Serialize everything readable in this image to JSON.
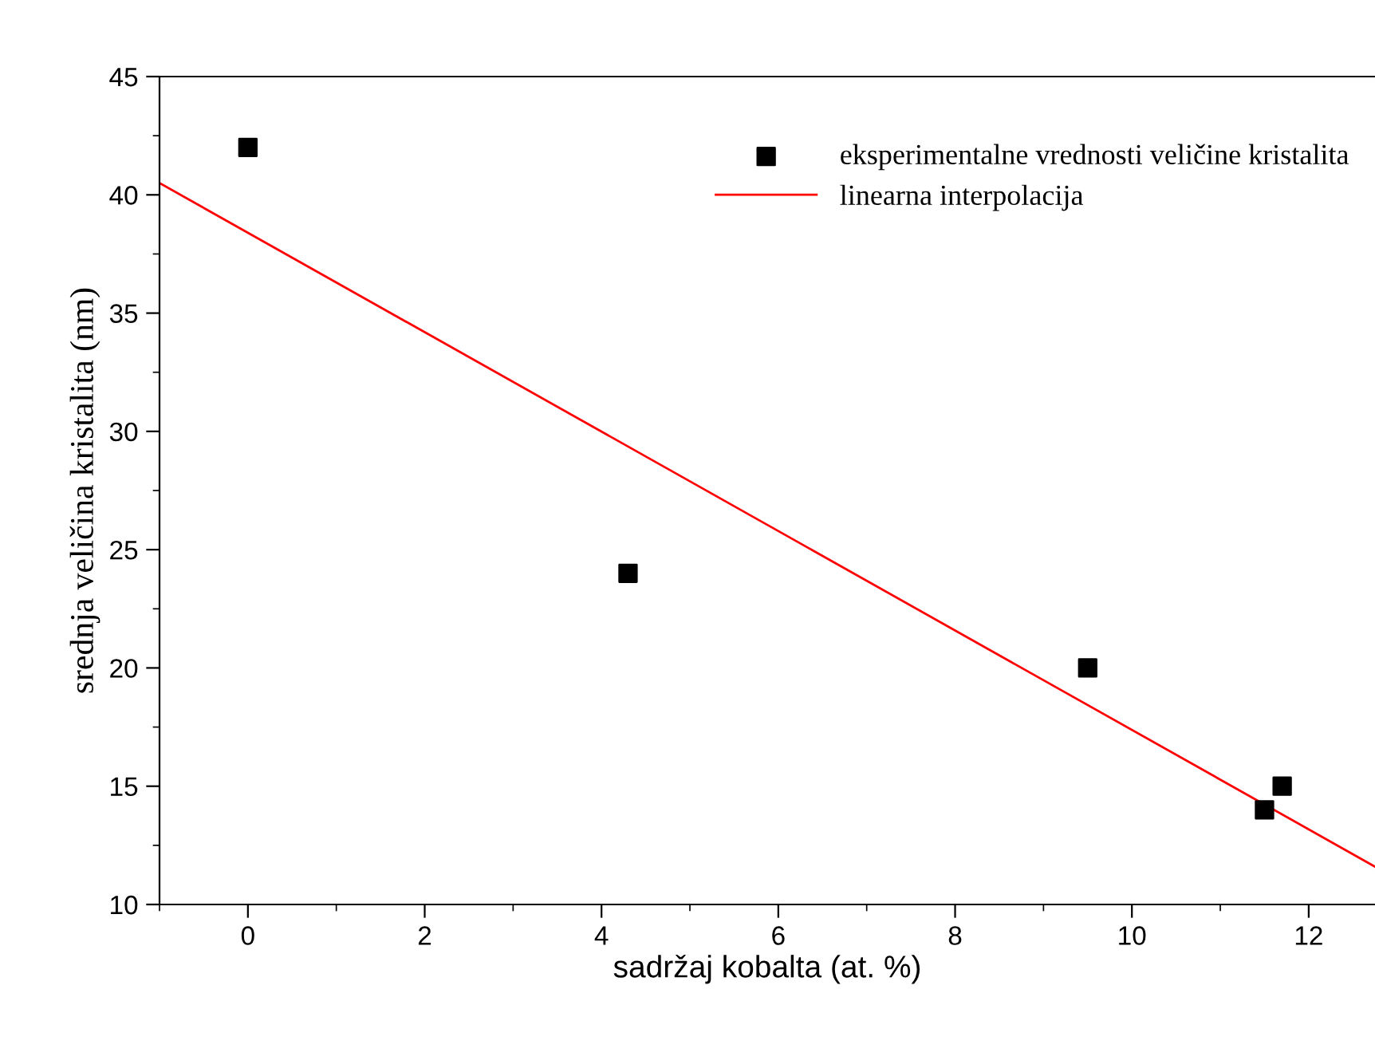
{
  "chart_data": {
    "type": "scatter",
    "xlabel": "sadržaj kobalta (at. %)",
    "ylabel": "srednja veličina kristalita (nm)",
    "xlim": [
      -1,
      12.75
    ],
    "ylim": [
      10,
      45
    ],
    "xticks": [
      0,
      2,
      4,
      6,
      8,
      10,
      12
    ],
    "yticks": [
      10,
      15,
      20,
      25,
      30,
      35,
      40,
      45
    ],
    "legend": "top right",
    "grid": false,
    "series": [
      {
        "name": "eksperimentalne vrednosti veličine kristalita",
        "color": "#000000",
        "marker": "square",
        "x": [
          0,
          4.3,
          9.5,
          11.5,
          11.7
        ],
        "values": [
          42,
          24,
          20,
          14,
          15
        ]
      },
      {
        "name": "linearna interpolacija",
        "type": "line",
        "color": "#ff0000",
        "marker": "none",
        "line_style": "solid",
        "x": [
          -1,
          12.75
        ],
        "values": [
          40.5,
          11.6
        ]
      }
    ]
  }
}
